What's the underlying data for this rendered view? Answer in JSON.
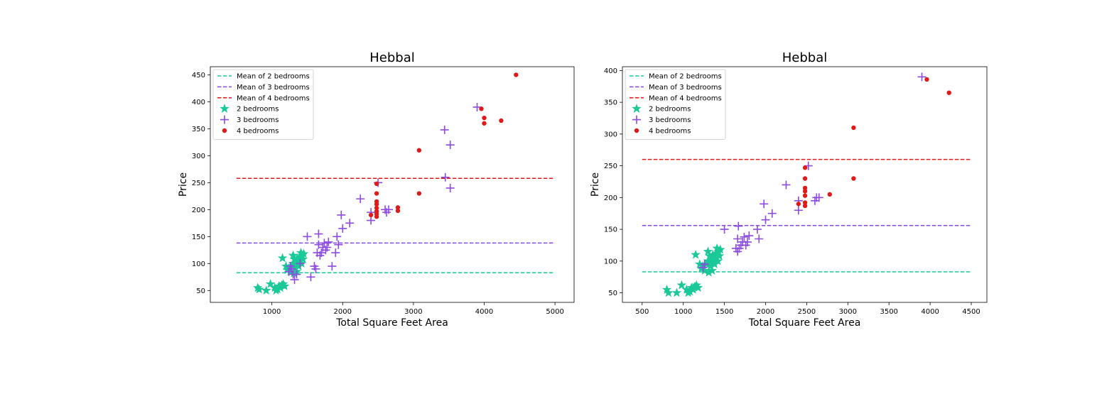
{
  "chart_data": [
    {
      "type": "scatter",
      "title": "Hebbal",
      "xlabel": "Total Square Feet Area",
      "ylabel": "Price",
      "xlim": [
        130,
        5270
      ],
      "ylim": [
        28,
        465
      ],
      "xticks": [
        1000,
        2000,
        3000,
        4000,
        5000
      ],
      "yticks": [
        50,
        100,
        150,
        200,
        250,
        300,
        350,
        400,
        450
      ],
      "grid": false,
      "legend_position": "top-left",
      "lines": [
        {
          "name": "Mean of 2 bedrooms",
          "color": "#1ac997",
          "y": 83,
          "x": [
            500,
            5000
          ]
        },
        {
          "name": "Mean of 3 bedrooms",
          "color": "#8c4ae0",
          "y": 138,
          "x": [
            500,
            5000
          ]
        },
        {
          "name": "Mean of 4 bedrooms",
          "color": "#e01a1a",
          "y": 258,
          "x": [
            500,
            5000
          ]
        }
      ],
      "series": [
        {
          "name": "2 bedrooms",
          "marker": "star",
          "color": "#1ac997",
          "points": [
            [
              800,
              55
            ],
            [
              820,
              52
            ],
            [
              920,
              50
            ],
            [
              980,
              62
            ],
            [
              1040,
              55
            ],
            [
              1060,
              50
            ],
            [
              1080,
              52
            ],
            [
              1100,
              58
            ],
            [
              1120,
              55
            ],
            [
              1140,
              60
            ],
            [
              1160,
              62
            ],
            [
              1180,
              58
            ],
            [
              1150,
              110
            ],
            [
              1200,
              95
            ],
            [
              1220,
              88
            ],
            [
              1240,
              92
            ],
            [
              1260,
              85
            ],
            [
              1280,
              95
            ],
            [
              1300,
              100
            ],
            [
              1300,
              115
            ],
            [
              1320,
              108
            ],
            [
              1330,
              92
            ],
            [
              1340,
              102
            ],
            [
              1350,
              98
            ],
            [
              1360,
              110
            ],
            [
              1370,
              100
            ],
            [
              1380,
              95
            ],
            [
              1390,
              105
            ],
            [
              1400,
              112
            ],
            [
              1410,
              120
            ],
            [
              1420,
              100
            ],
            [
              1430,
              115
            ],
            [
              1440,
              108
            ],
            [
              1450,
              118
            ],
            [
              1310,
              82
            ],
            [
              1350,
              85
            ]
          ]
        },
        {
          "name": "3 bedrooms",
          "marker": "plus",
          "color": "#8c4ae0",
          "points": [
            [
              1240,
              85
            ],
            [
              1260,
              95
            ],
            [
              1280,
              90
            ],
            [
              1300,
              80
            ],
            [
              1320,
              70
            ],
            [
              1350,
              80
            ],
            [
              1400,
              100
            ],
            [
              1500,
              150
            ],
            [
              1550,
              75
            ],
            [
              1600,
              95
            ],
            [
              1620,
              90
            ],
            [
              1640,
              120
            ],
            [
              1660,
              135
            ],
            [
              1660,
              155
            ],
            [
              1680,
              115
            ],
            [
              1700,
              120
            ],
            [
              1720,
              130
            ],
            [
              1740,
              138
            ],
            [
              1760,
              125
            ],
            [
              1780,
              130
            ],
            [
              1800,
              140
            ],
            [
              1850,
              95
            ],
            [
              1900,
              120
            ],
            [
              1920,
              150
            ],
            [
              1940,
              135
            ],
            [
              1980,
              190
            ],
            [
              2000,
              165
            ],
            [
              2100,
              175
            ],
            [
              2250,
              220
            ],
            [
              2400,
              180
            ],
            [
              2400,
              195
            ],
            [
              2500,
              250
            ],
            [
              2600,
              200
            ],
            [
              2620,
              195
            ],
            [
              2650,
              200
            ],
            [
              3440,
              348
            ],
            [
              3450,
              260
            ],
            [
              3520,
              240
            ],
            [
              3520,
              320
            ],
            [
              3900,
              390
            ]
          ]
        },
        {
          "name": "4 bedrooms",
          "marker": "circle",
          "color": "#e01a1a",
          "points": [
            [
              2400,
              190
            ],
            [
              2480,
              187
            ],
            [
              2480,
              192
            ],
            [
              2480,
              197
            ],
            [
              2480,
              203
            ],
            [
              2480,
              210
            ],
            [
              2480,
              215
            ],
            [
              2480,
              230
            ],
            [
              2480,
              248
            ],
            [
              2780,
              198
            ],
            [
              2780,
              204
            ],
            [
              3080,
              230
            ],
            [
              3080,
              310
            ],
            [
              3960,
              387
            ],
            [
              4000,
              360
            ],
            [
              4000,
              370
            ],
            [
              4240,
              365
            ],
            [
              4450,
              450
            ]
          ]
        }
      ]
    },
    {
      "type": "scatter",
      "title": "Hebbal",
      "xlabel": "Total Square Feet Area",
      "ylabel": "Price",
      "xlim": [
        260,
        4690
      ],
      "ylim": [
        35,
        406
      ],
      "xticks": [
        500,
        1000,
        1500,
        2000,
        2500,
        3000,
        3500,
        4000,
        4500
      ],
      "yticks": [
        50,
        100,
        150,
        200,
        250,
        300,
        350,
        400
      ],
      "grid": false,
      "legend_position": "top-left",
      "lines": [
        {
          "name": "Mean of 2 bedrooms",
          "color": "#1ac997",
          "y": 83,
          "x": [
            500,
            4500
          ]
        },
        {
          "name": "Mean of 3 bedrooms",
          "color": "#8c4ae0",
          "y": 156,
          "x": [
            500,
            4500
          ]
        },
        {
          "name": "Mean of 4 bedrooms",
          "color": "#e01a1a",
          "y": 260,
          "x": [
            500,
            4500
          ]
        }
      ],
      "series": [
        {
          "name": "2 bedrooms",
          "marker": "star",
          "color": "#1ac997",
          "points": [
            [
              800,
              55
            ],
            [
              820,
              50
            ],
            [
              920,
              50
            ],
            [
              980,
              62
            ],
            [
              1040,
              55
            ],
            [
              1060,
              50
            ],
            [
              1080,
              52
            ],
            [
              1100,
              58
            ],
            [
              1120,
              55
            ],
            [
              1140,
              60
            ],
            [
              1160,
              62
            ],
            [
              1180,
              58
            ],
            [
              1150,
              110
            ],
            [
              1200,
              95
            ],
            [
              1220,
              88
            ],
            [
              1240,
              92
            ],
            [
              1260,
              85
            ],
            [
              1280,
              95
            ],
            [
              1300,
              100
            ],
            [
              1300,
              115
            ],
            [
              1320,
              108
            ],
            [
              1330,
              92
            ],
            [
              1340,
              102
            ],
            [
              1350,
              98
            ],
            [
              1360,
              110
            ],
            [
              1370,
              100
            ],
            [
              1380,
              95
            ],
            [
              1390,
              105
            ],
            [
              1400,
              112
            ],
            [
              1410,
              120
            ],
            [
              1420,
              100
            ],
            [
              1430,
              115
            ],
            [
              1440,
              108
            ],
            [
              1450,
              118
            ],
            [
              1310,
              82
            ],
            [
              1350,
              85
            ]
          ]
        },
        {
          "name": "3 bedrooms",
          "marker": "plus",
          "color": "#8c4ae0",
          "points": [
            [
              1240,
              90
            ],
            [
              1260,
              95
            ],
            [
              1500,
              150
            ],
            [
              1640,
              120
            ],
            [
              1660,
              115
            ],
            [
              1660,
              135
            ],
            [
              1670,
              155
            ],
            [
              1680,
              120
            ],
            [
              1700,
              125
            ],
            [
              1720,
              130
            ],
            [
              1740,
              138
            ],
            [
              1760,
              125
            ],
            [
              1780,
              130
            ],
            [
              1800,
              140
            ],
            [
              1900,
              150
            ],
            [
              1920,
              135
            ],
            [
              1980,
              190
            ],
            [
              2000,
              165
            ],
            [
              2080,
              175
            ],
            [
              2250,
              220
            ],
            [
              2400,
              180
            ],
            [
              2400,
              195
            ],
            [
              2520,
              250
            ],
            [
              2600,
              195
            ],
            [
              2620,
              200
            ],
            [
              2650,
              200
            ],
            [
              3900,
              390
            ]
          ]
        },
        {
          "name": "4 bedrooms",
          "marker": "circle",
          "color": "#e01a1a",
          "points": [
            [
              2400,
              190
            ],
            [
              2480,
              187
            ],
            [
              2480,
              192
            ],
            [
              2480,
              203
            ],
            [
              2480,
              210
            ],
            [
              2480,
              215
            ],
            [
              2480,
              230
            ],
            [
              2480,
              247
            ],
            [
              2780,
              205
            ],
            [
              3070,
              230
            ],
            [
              3070,
              310
            ],
            [
              3960,
              386
            ],
            [
              4230,
              365
            ]
          ]
        }
      ]
    }
  ]
}
